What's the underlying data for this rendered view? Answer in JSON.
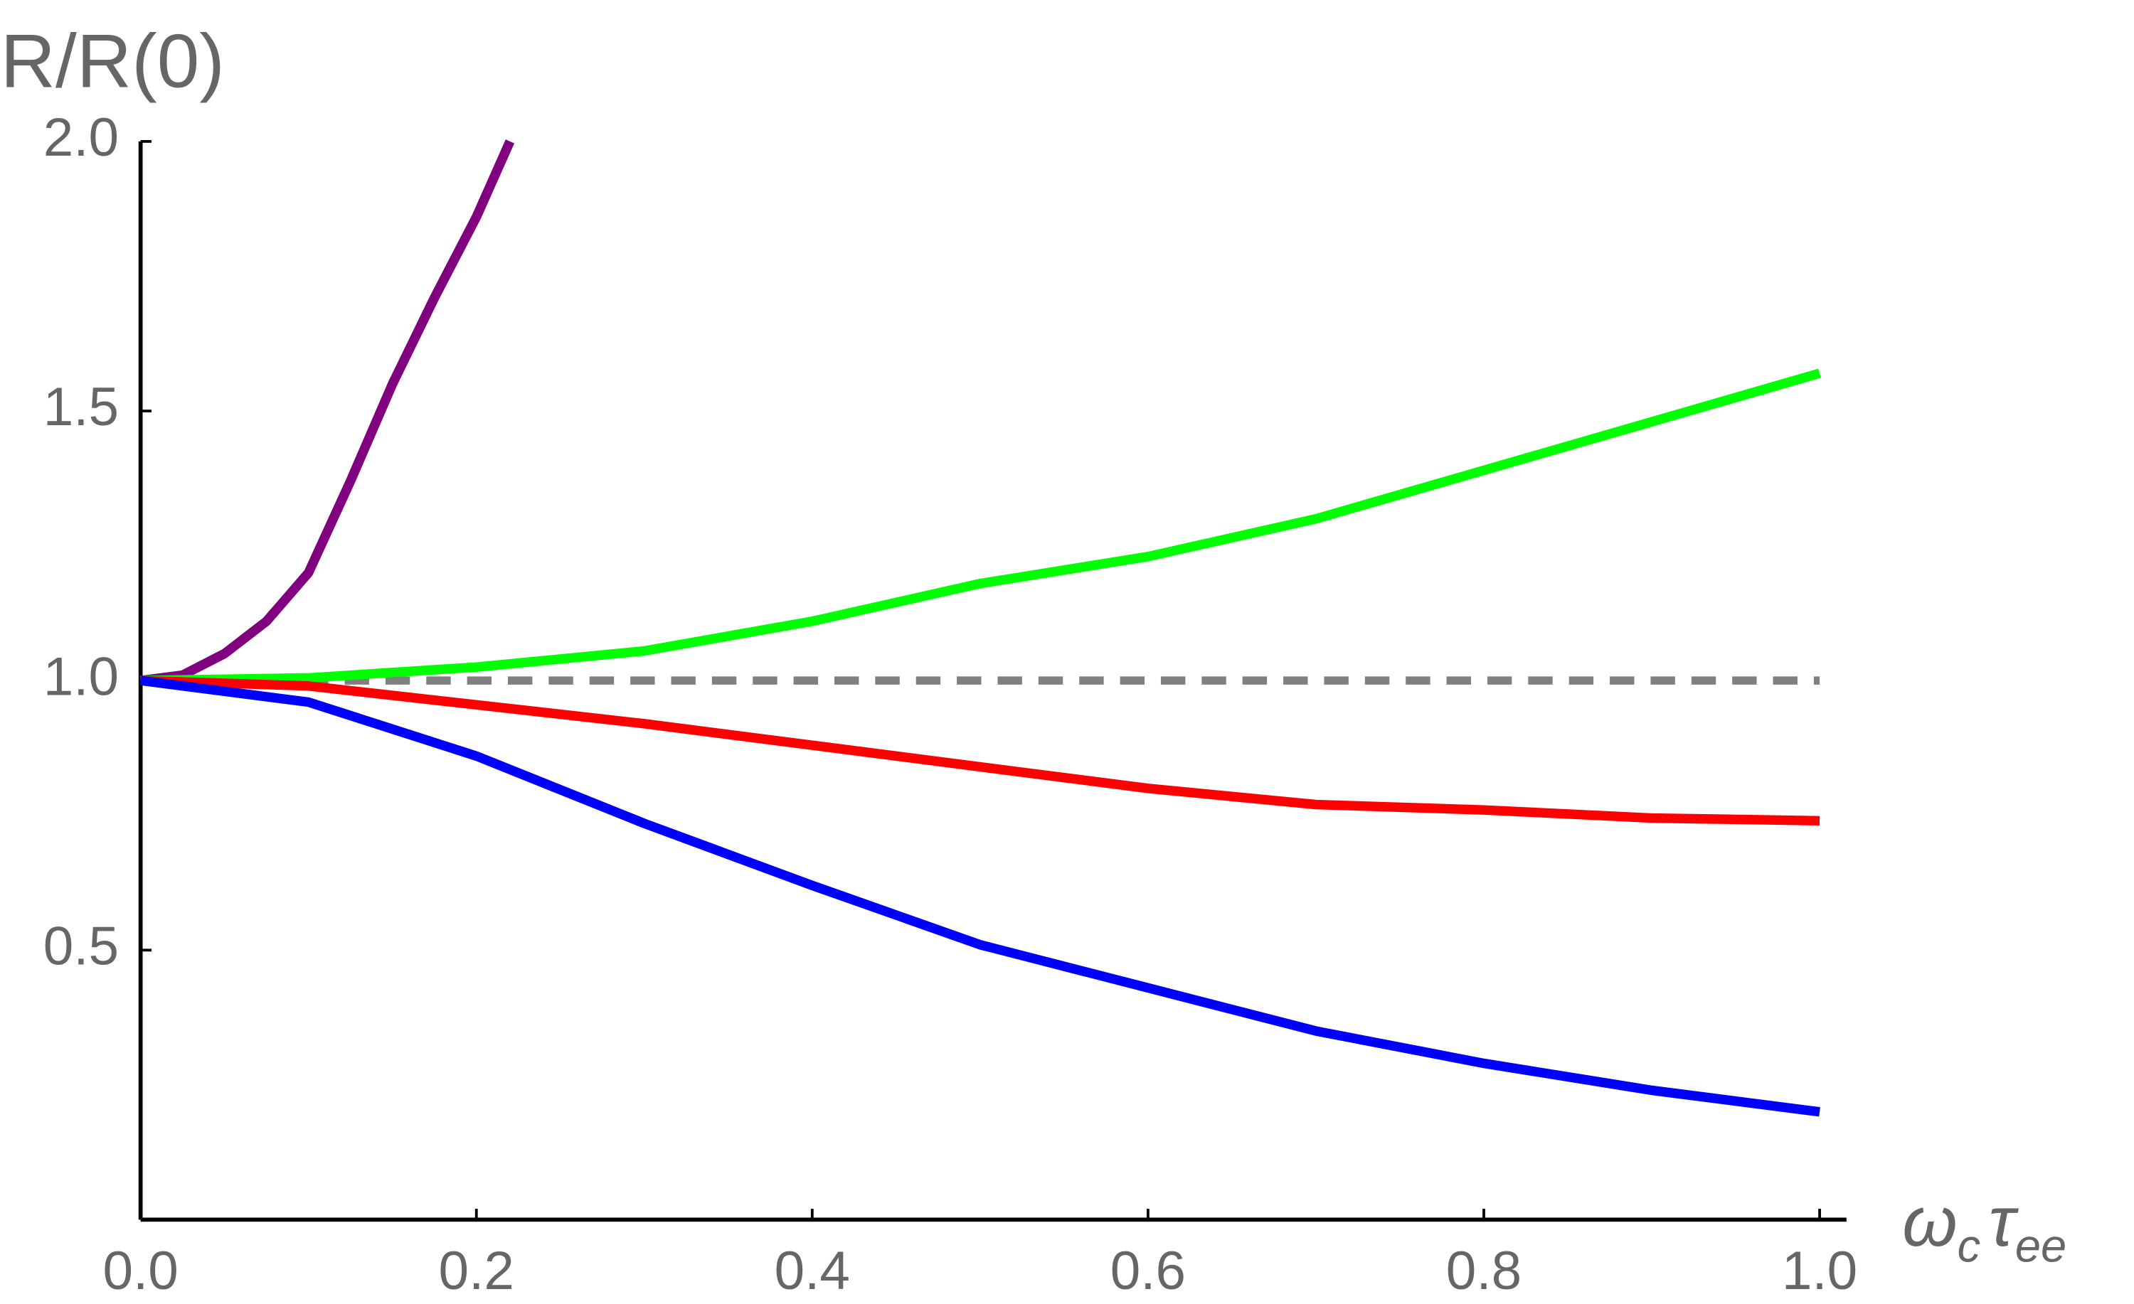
{
  "chart_data": {
    "type": "line",
    "y_label": "R/R(0)",
    "x_label": [
      "ω",
      "c",
      "τ",
      "ee"
    ],
    "xlim": [
      0,
      1.016
    ],
    "ylim": [
      0,
      2
    ],
    "xticks": [
      {
        "value": 0,
        "label": "0.0"
      },
      0.2,
      0.4,
      0.6,
      0.8,
      {
        "value": 1,
        "label": "1.0"
      }
    ],
    "yticks": [
      0.5,
      {
        "value": 1,
        "label": "1.0"
      },
      1.5,
      {
        "value": 2,
        "label": "2.0"
      }
    ],
    "series": [
      {
        "color": "#808080",
        "dashed": true,
        "x": [
          0,
          1
        ],
        "values": [
          1,
          1
        ]
      },
      {
        "color": "#800080",
        "x": [
          0,
          0.025,
          0.05,
          0.075,
          0.1,
          0.125,
          0.15,
          0.175,
          0.2,
          0.22
        ],
        "values": [
          1,
          1.01,
          1.05,
          1.11,
          1.2,
          1.37,
          1.55,
          1.71,
          1.86,
          2.0
        ]
      },
      {
        "color": "#00ff00",
        "x": [
          0,
          0.1,
          0.2,
          0.3,
          0.4,
          0.5,
          0.6,
          0.7,
          0.8,
          0.9,
          1
        ],
        "values": [
          1,
          1.005,
          1.025,
          1.055,
          1.11,
          1.18,
          1.23,
          1.3,
          1.39,
          1.48,
          1.57
        ]
      },
      {
        "color": "#ff0000",
        "x": [
          0,
          0.1,
          0.2,
          0.3,
          0.4,
          0.5,
          0.6,
          0.7,
          0.8,
          0.9,
          1
        ],
        "values": [
          1,
          0.99,
          0.955,
          0.92,
          0.88,
          0.84,
          0.8,
          0.77,
          0.76,
          0.745,
          0.74
        ]
      },
      {
        "color": "#0000ff",
        "x": [
          0,
          0.1,
          0.2,
          0.3,
          0.4,
          0.5,
          0.6,
          0.7,
          0.8,
          0.9,
          1
        ],
        "values": [
          1,
          0.96,
          0.86,
          0.735,
          0.62,
          0.51,
          0.43,
          0.35,
          0.29,
          0.24,
          0.2
        ]
      }
    ]
  }
}
